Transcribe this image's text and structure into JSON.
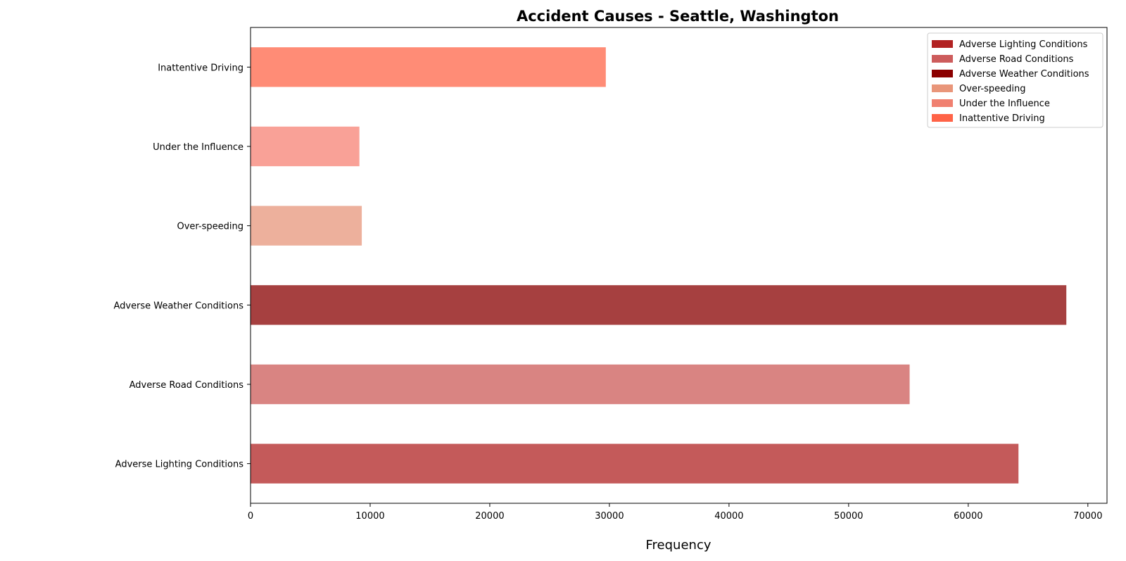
{
  "chart_data": {
    "type": "bar",
    "orientation": "horizontal",
    "title": "Accident Causes - Seattle, Washington",
    "xlabel": "Frequency",
    "ylabel": "",
    "xlim": [
      0,
      71600
    ],
    "xticks": [
      0,
      10000,
      20000,
      30000,
      40000,
      50000,
      60000,
      70000
    ],
    "grid": false,
    "legend_position": "top-right",
    "categories": [
      "Adverse Lighting Conditions",
      "Adverse Road Conditions",
      "Adverse Weather Conditions",
      "Over-speeding",
      "Under the Influence",
      "Inattentive Driving"
    ],
    "values": [
      64200,
      55100,
      68200,
      9300,
      9100,
      29700
    ],
    "bar_colors": [
      "#c45a5a",
      "#d98482",
      "#a64040",
      "#edb09c",
      "#f9a197",
      "#ff8c76"
    ],
    "legend": [
      {
        "label": "Adverse Lighting Conditions",
        "color": "#b22222"
      },
      {
        "label": "Adverse Road Conditions",
        "color": "#cd5c5c"
      },
      {
        "label": "Adverse Weather Conditions",
        "color": "#8b0000"
      },
      {
        "label": "Over-speeding",
        "color": "#e9967a"
      },
      {
        "label": "Under the Influence",
        "color": "#f08070"
      },
      {
        "label": "Inattentive Driving",
        "color": "#ff6347"
      }
    ]
  }
}
